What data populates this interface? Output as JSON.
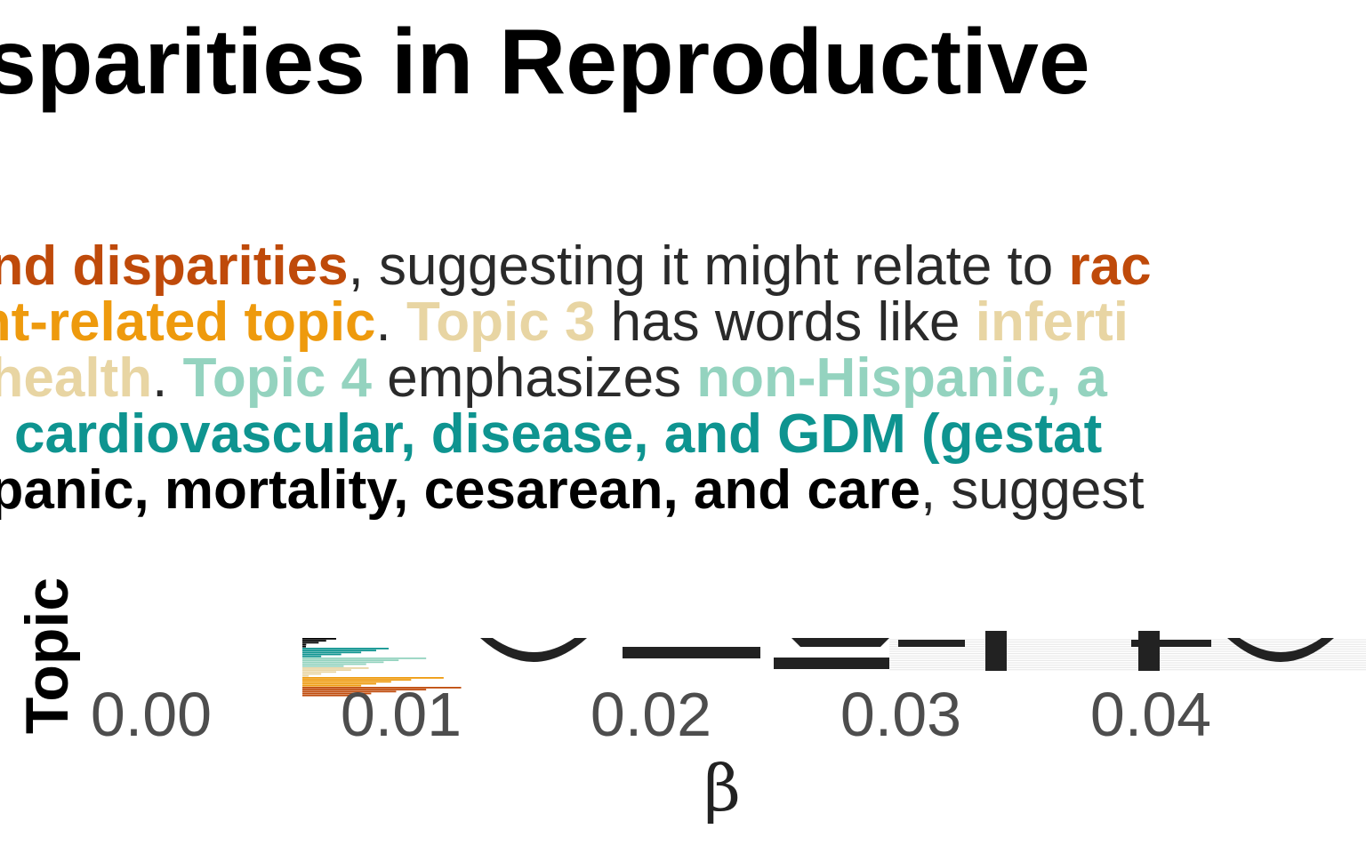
{
  "title": "nic Disparities in Reproductive",
  "subtitle": {
    "lines": [
      [
        {
          "text": "nal, and disparities",
          "style": "topic1"
        },
        {
          "text": ", suggesting it might relate to ",
          "style": "plain"
        },
        {
          "text": "rac",
          "style": "topic1"
        }
      ],
      [
        {
          "text": "atment-related topic",
          "style": "topic2"
        },
        {
          "text": ". ",
          "style": "plain"
        },
        {
          "text": "Topic 3",
          "style": "topic3"
        },
        {
          "text": " has words like ",
          "style": "plain"
        },
        {
          "text": "inferti",
          "style": "topic3"
        }
      ],
      [
        {
          "text": "ctive health",
          "style": "topic3"
        },
        {
          "text": ". ",
          "style": "plain"
        },
        {
          "text": "Topic 4",
          "style": "topic4"
        },
        {
          "text": " emphasizes ",
          "style": "plain"
        },
        {
          "text": "non-Hispanic, a",
          "style": "topic4"
        }
      ],
      [
        {
          "text": "roids, cardiovascular, disease, and GDM (gestat",
          "style": "topic5"
        }
      ],
      [
        {
          "text": "e, hispanic, mortality, cesarean, and care",
          "style": "topic6"
        },
        {
          "text": ", suggest",
          "style": "plain"
        }
      ]
    ]
  },
  "colors": {
    "plain": "#2a2a2a",
    "topic1": "#bf4a0a",
    "topic2": "#ee9a0d",
    "topic3": "#e8d5a3",
    "topic4": "#94d3bf",
    "topic5": "#0e9490",
    "topic6": "#000000",
    "axis_text": "#4d4d4d",
    "grid": "#e6e6e6"
  },
  "chart_data": {
    "type": "bar",
    "orientation": "horizontal",
    "xlabel": "β",
    "ylabel": "Topic",
    "xlim": [
      0,
      0.05
    ],
    "x_ticks": [
      "0.00",
      "0.01",
      "0.02",
      "0.03",
      "0.04"
    ],
    "grid": true,
    "series": [
      {
        "color_key": "topic6",
        "values": [
          0.0042,
          0.0038,
          0.0035,
          0.003,
          0.0024
        ]
      },
      {
        "color_key": "topic5",
        "values": [
          0.0063,
          0.0058,
          0.0052,
          0.0044,
          0.0036
        ]
      },
      {
        "color_key": "topic4",
        "values": [
          0.0078,
          0.0067,
          0.0061,
          0.0054,
          0.0045
        ]
      },
      {
        "color_key": "topic3",
        "values": [
          0.0055,
          0.0048,
          0.0042,
          0.0036,
          0.0031
        ]
      },
      {
        "color_key": "topic2",
        "values": [
          0.0085,
          0.0072,
          0.0064,
          0.0058,
          0.0052
        ]
      },
      {
        "color_key": "topic1",
        "values": [
          0.0092,
          0.0078,
          0.0066,
          0.0056,
          0.0049
        ]
      }
    ]
  }
}
